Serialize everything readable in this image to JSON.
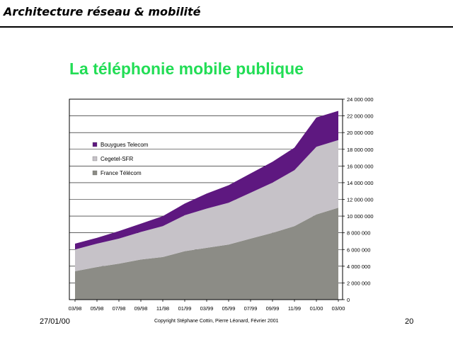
{
  "header": {
    "title": "Architecture réseau & mobilité"
  },
  "slide": {
    "title": "La téléphonie  mobile publique"
  },
  "footer": {
    "date": "27/01/00",
    "copyright": "Copyright Stéphane Cottin, Pierre Léonard, Février 2001",
    "page": "20"
  },
  "colors": {
    "france_telecom": "#8c8c86",
    "cegetel_sfr": "#c6c2c8",
    "bouygues_telecom": "#5e1880",
    "title_green": "#22dd55"
  },
  "chart_data": {
    "type": "area",
    "stacked": true,
    "x": [
      "03/98",
      "05/98",
      "07/98",
      "09/98",
      "11/98",
      "01/99",
      "03/99",
      "05/99",
      "07/99",
      "09/99",
      "11/99",
      "01/00",
      "03/00"
    ],
    "series": [
      {
        "name": "France Télécom",
        "values": [
          3400000,
          3900000,
          4300000,
          4800000,
          5100000,
          5800000,
          6200000,
          6600000,
          7300000,
          8000000,
          8800000,
          10200000,
          11000000
        ]
      },
      {
        "name": "Cegetel-SFR",
        "values": [
          2600000,
          2800000,
          3000000,
          3300000,
          3700000,
          4300000,
          4700000,
          5000000,
          5500000,
          6000000,
          6700000,
          8100000,
          8100000
        ]
      },
      {
        "name": "Bouygues Telecom",
        "values": [
          700000,
          700000,
          900000,
          1000000,
          1200000,
          1400000,
          1800000,
          2100000,
          2300000,
          2500000,
          2700000,
          3500000,
          3500000
        ]
      }
    ],
    "y_ticks": [
      "0",
      "2 000 000",
      "4 000 000",
      "6 000 000",
      "8 000 000",
      "10 000 000",
      "12 000 000",
      "14 000 000",
      "16 000 000",
      "18 000 000",
      "20 000 000",
      "22 000 000",
      "24 000 000"
    ],
    "ylim": [
      0,
      24000000
    ],
    "y_axis_side": "right",
    "grid": true,
    "legend_position": "top-left",
    "legend_order": [
      "Bouygues Telecom",
      "Cegetel-SFR",
      "France Télécom"
    ]
  }
}
